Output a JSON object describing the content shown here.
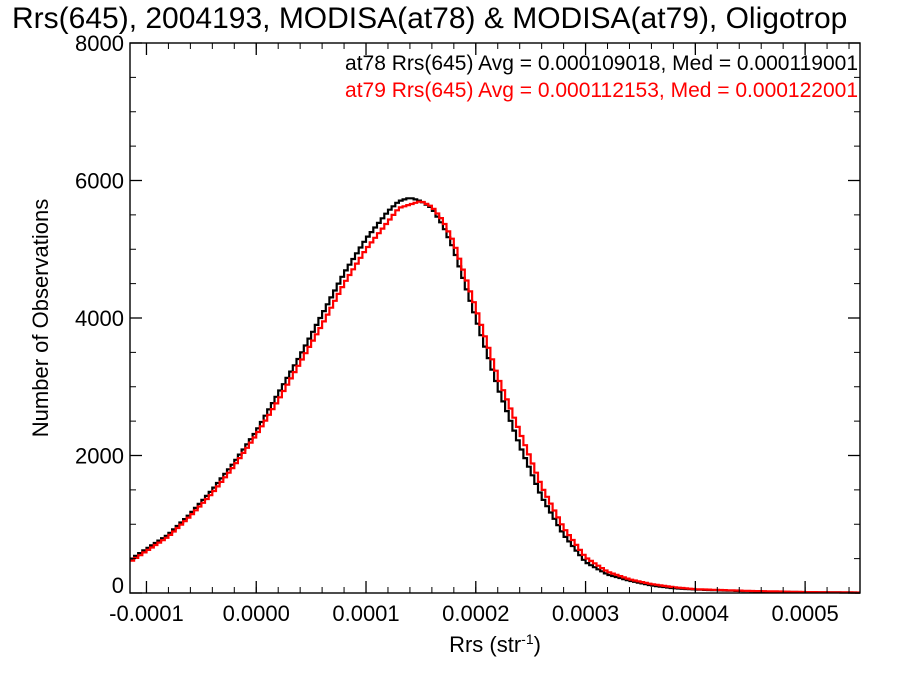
{
  "chart_data": {
    "type": "line",
    "title": "Rrs(645), 2004193, MODISA(at78) & MODISA(at79), Oligotrop",
    "xlabel": "Rrs (str",
    "xlabel_sup": "-1",
    "xlabel_suffix": ")",
    "ylabel": "Number of Observations",
    "xlim": [
      -0.000115,
      0.00055
    ],
    "ylim": [
      0,
      8000
    ],
    "x_ticks": [
      {
        "value": -0.0001,
        "label": "-0.0001"
      },
      {
        "value": 0.0,
        "label": "0.0000"
      },
      {
        "value": 0.0001,
        "label": "0.0001"
      },
      {
        "value": 0.0002,
        "label": "0.0002"
      },
      {
        "value": 0.0003,
        "label": "0.0003"
      },
      {
        "value": 0.0004,
        "label": "0.0004"
      },
      {
        "value": 0.0005,
        "label": "0.0005"
      }
    ],
    "y_ticks": [
      {
        "value": 0,
        "label": "0"
      },
      {
        "value": 2000,
        "label": "2000"
      },
      {
        "value": 4000,
        "label": "4000"
      },
      {
        "value": 6000,
        "label": "6000"
      },
      {
        "value": 8000,
        "label": "8000"
      }
    ],
    "grid": false,
    "legend_position": "top-right",
    "x": [
      -0.000115,
      -0.0001,
      -8e-05,
      -6e-05,
      -4e-05,
      -2e-05,
      0.0,
      2e-05,
      4e-05,
      6e-05,
      8e-05,
      0.0001,
      0.00012,
      0.00013,
      0.00014,
      0.00015,
      0.00016,
      0.00017,
      0.00018,
      0.0002,
      0.00022,
      0.00024,
      0.00026,
      0.00028,
      0.0003,
      0.00032,
      0.00034,
      0.00036,
      0.00038,
      0.0004,
      0.00045,
      0.0005,
      0.00055
    ],
    "series": [
      {
        "name": "at78",
        "color": "#000000",
        "values": [
          480,
          640,
          850,
          1150,
          1500,
          1900,
          2350,
          2900,
          3450,
          4050,
          4650,
          5150,
          5550,
          5700,
          5750,
          5700,
          5600,
          5350,
          5000,
          4000,
          3000,
          2150,
          1400,
          850,
          450,
          270,
          180,
          110,
          70,
          50,
          25,
          12,
          6
        ]
      },
      {
        "name": "at79",
        "color": "#ff0000",
        "values": [
          450,
          610,
          820,
          1120,
          1450,
          1850,
          2300,
          2800,
          3350,
          3900,
          4500,
          5000,
          5400,
          5600,
          5650,
          5700,
          5620,
          5420,
          5100,
          4150,
          3150,
          2350,
          1550,
          950,
          520,
          310,
          200,
          130,
          85,
          55,
          30,
          14,
          7
        ]
      }
    ],
    "legend": [
      {
        "text": "at78 Rrs(645) Avg = 0.000109018, Med = 0.000119001",
        "color": "#000000"
      },
      {
        "text": "at79 Rrs(645) Avg = 0.000112153, Med = 0.000122001",
        "color": "#ff0000"
      }
    ]
  }
}
